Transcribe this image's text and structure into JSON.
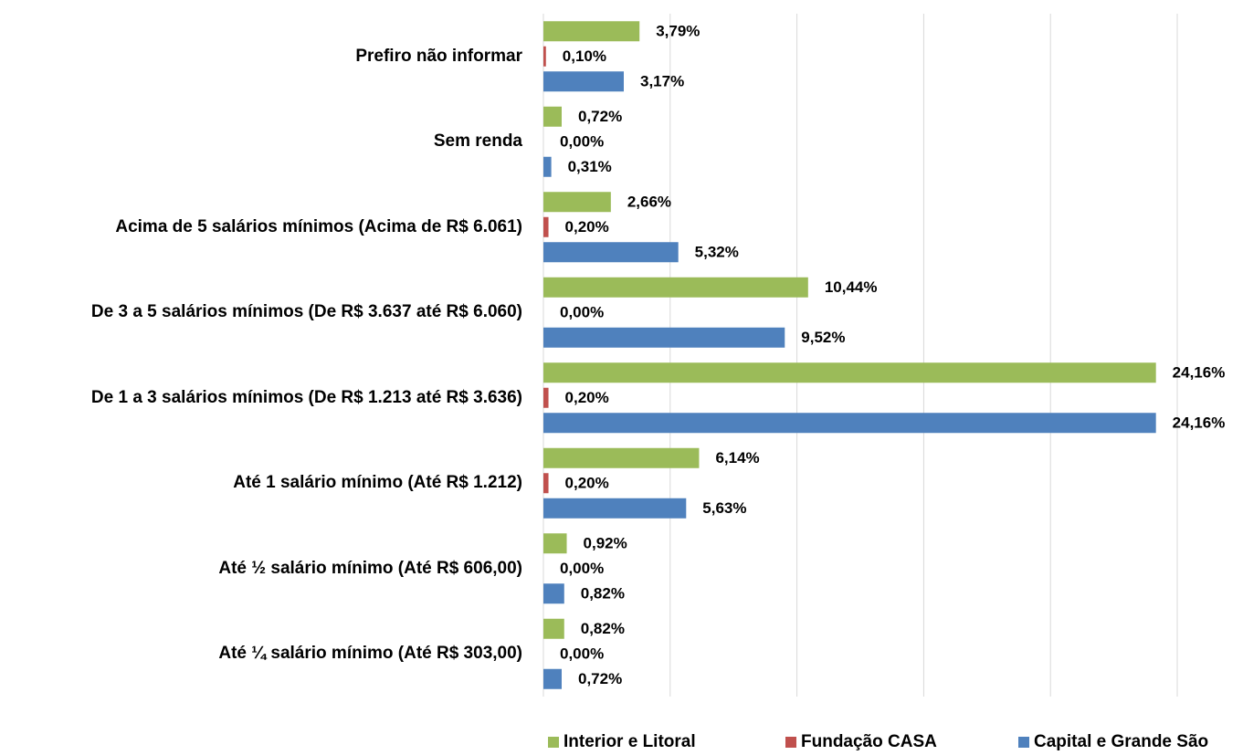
{
  "chart_data": {
    "type": "bar",
    "orientation": "horizontal",
    "categories": [
      "Prefiro não informar",
      "Sem renda",
      "Acima de 5 salários mínimos (Acima de R$ 6.061)",
      "De 3 a 5 salários mínimos (De R$ 3.637 até R$ 6.060)",
      "De 1 a 3 salários mínimos (De R$ 1.213 até R$ 3.636)",
      "Até 1 salário mínimo (Até R$ 1.212)",
      "Até ½ salário mínimo (Até R$ 606,00)",
      "Até ¼ salário mínimo (Até R$ 303,00)"
    ],
    "series": [
      {
        "name": "Interior e Litoral",
        "color": "#9bbb59",
        "values": [
          3.79,
          0.72,
          2.66,
          10.44,
          24.16,
          6.14,
          0.92,
          0.82
        ],
        "value_labels": [
          "3,79%",
          "0,72%",
          "2,66%",
          "10,44%",
          "24,16%",
          "6,14%",
          "0,92%",
          "0,82%"
        ]
      },
      {
        "name": "Fundação CASA",
        "color": "#c0504d",
        "values": [
          0.1,
          0.0,
          0.2,
          0.0,
          0.2,
          0.2,
          0.0,
          0.0
        ],
        "value_labels": [
          "0,10%",
          "0,00%",
          "0,20%",
          "0,00%",
          "0,20%",
          "0,20%",
          "0,00%",
          "0,00%"
        ]
      },
      {
        "name": "Capital e Grande São",
        "color": "#4f81bd",
        "values": [
          3.17,
          0.31,
          5.32,
          9.52,
          24.16,
          5.63,
          0.82,
          0.72
        ],
        "value_labels": [
          "3,17%",
          "0,31%",
          "5,32%",
          "9,52%",
          "24,16%",
          "5,63%",
          "0,82%",
          "0,72%"
        ]
      }
    ],
    "xlim": [
      0,
      25
    ],
    "xticks": [
      0,
      5,
      10,
      15,
      20,
      25
    ],
    "grid": true,
    "legend": "bottom"
  }
}
